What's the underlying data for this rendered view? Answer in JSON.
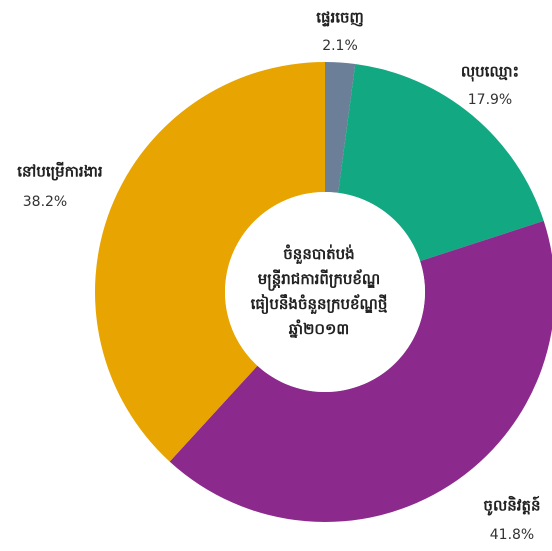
{
  "chart_data": {
    "type": "donut",
    "center_label": [
      "ចំនួនបាត់បង់",
      "មន្ត្រីរាជការពីក្របខ័ណ្ឌ",
      "ធៀបនឹងចំនួនក្របខ័ណ្ឌថ្មី",
      "ឆ្នាំ២០១៣"
    ],
    "categories": [
      "ផ្ទេរចេញ",
      "លុបឈ្មោះ",
      "ចូលនិវត្តន៍",
      "នៅបម្រើការងារ"
    ],
    "values": [
      2.1,
      17.9,
      41.8,
      38.2
    ],
    "value_labels": [
      "2.1%",
      "17.9%",
      "41.8%",
      "38.2%"
    ],
    "colors": [
      "#6b7f99",
      "#12a882",
      "#8b2a8c",
      "#e8a400"
    ]
  }
}
